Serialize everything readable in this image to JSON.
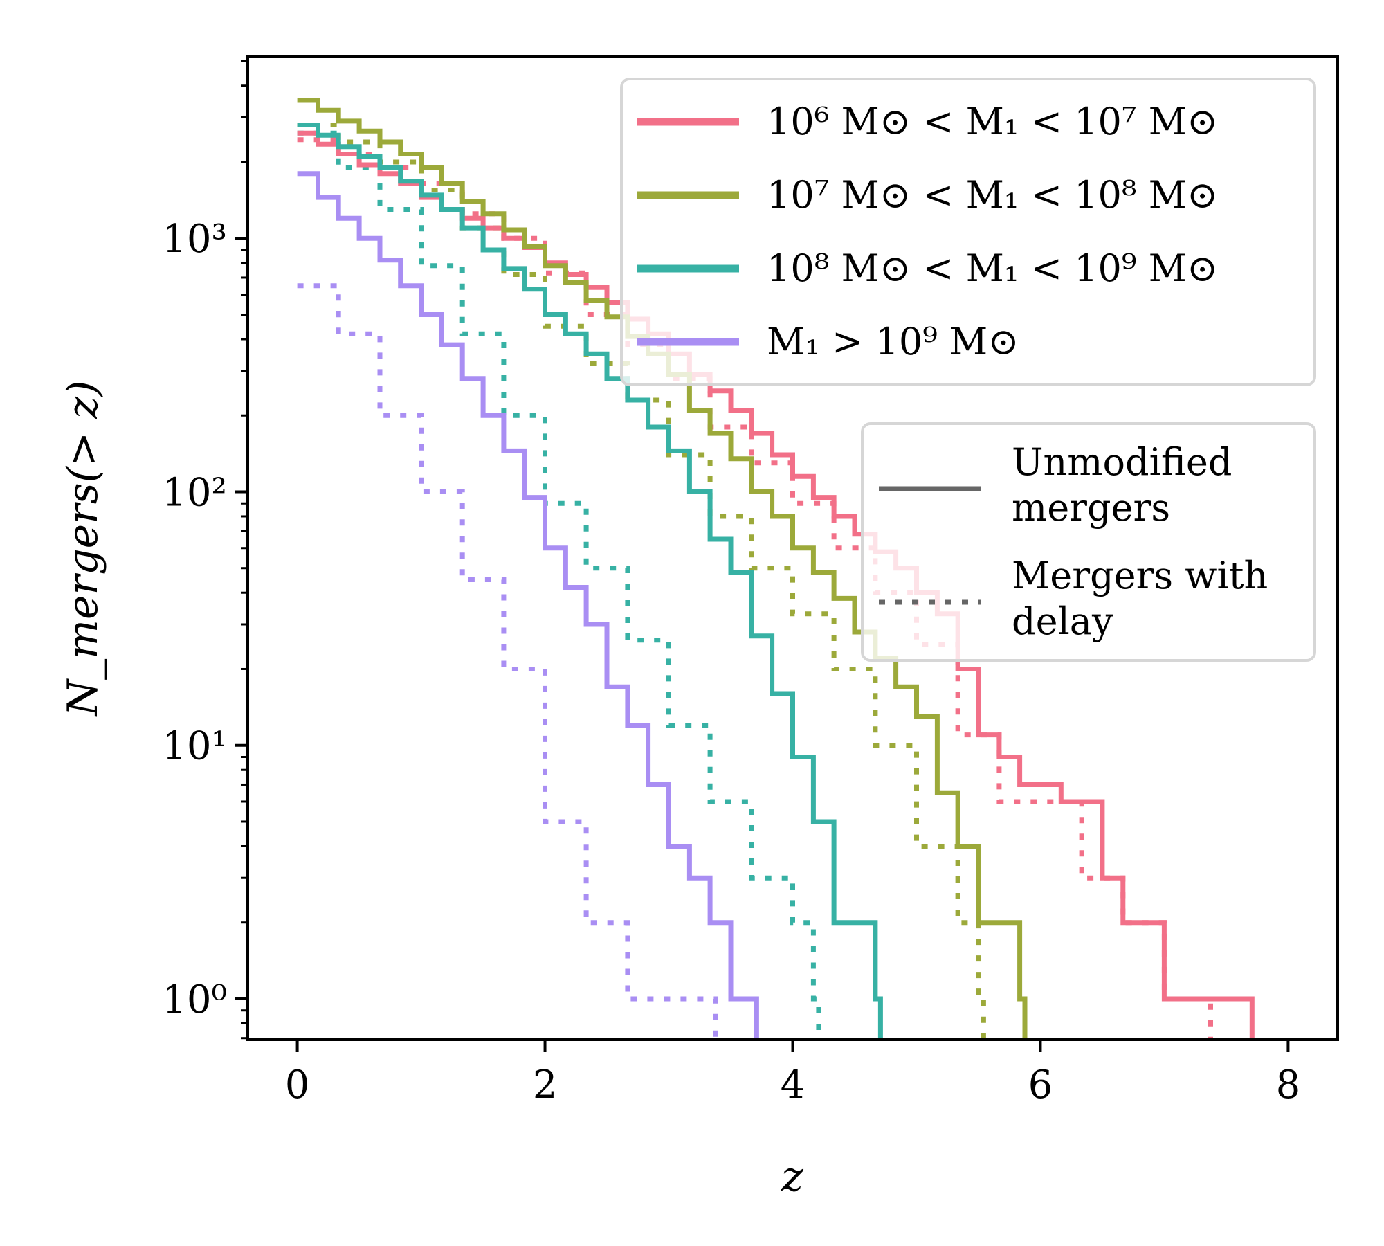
{
  "chart_data": {
    "type": "line",
    "step": true,
    "xlabel": "z",
    "ylabel": "N_mergers(> z)",
    "xlim": [
      -0.4,
      8.4
    ],
    "ylim": [
      0.69,
      5200
    ],
    "yscale": "log",
    "grid": false,
    "xticks": [
      0,
      2,
      4,
      6,
      8
    ],
    "xtick_labels": [
      "0",
      "2",
      "4",
      "6",
      "8"
    ],
    "yticks": [
      1,
      10,
      100,
      1000
    ],
    "ytick_labels": [
      "10⁰",
      "10¹",
      "10²",
      "10³"
    ],
    "bin_width": 0.167,
    "legend_mass": {
      "placement": "top-right",
      "entries": [
        {
          "label": "10⁶ M⊙ < M₁ < 10⁷ M⊙",
          "color": "#f27088"
        },
        {
          "label": "10⁷ M⊙ < M₁ < 10⁸ M⊙",
          "color": "#9ca93a"
        },
        {
          "label": "10⁸ M⊙ < M₁ < 10⁹ M⊙",
          "color": "#37b1a4"
        },
        {
          "label": "M₁ > 10⁹ M⊙",
          "color": "#a98ef3"
        }
      ]
    },
    "legend_style": {
      "placement": "center-right",
      "entries": [
        {
          "label_lines": [
            "Unmodified",
            "mergers"
          ],
          "style": "solid",
          "color": "#666666"
        },
        {
          "label_lines": [
            "Mergers with",
            "delay"
          ],
          "style": "dotted",
          "color": "#666666"
        }
      ]
    },
    "series": [
      {
        "group": "10⁶ M⊙ < M₁ < 10⁷ M⊙",
        "kind": "Unmodified mergers",
        "color": "#f27088",
        "style": "solid",
        "x": [
          0,
          0.167,
          0.333,
          0.5,
          0.667,
          0.833,
          1.0,
          1.167,
          1.333,
          1.5,
          1.667,
          1.833,
          2.0,
          2.167,
          2.333,
          2.5,
          2.667,
          2.833,
          3.0,
          3.167,
          3.333,
          3.5,
          3.667,
          3.833,
          4.0,
          4.167,
          4.333,
          4.5,
          4.667,
          4.833,
          5.0,
          5.167,
          5.333,
          5.5,
          5.667,
          5.833,
          6.167,
          6.5,
          6.667,
          7.0,
          7.667
        ],
        "y": [
          2600,
          2350,
          2150,
          1950,
          1800,
          1650,
          1450,
          1300,
          1200,
          1100,
          1000,
          920,
          800,
          720,
          640,
          560,
          480,
          420,
          350,
          290,
          250,
          210,
          170,
          140,
          115,
          95,
          80,
          68,
          58,
          50,
          40,
          33,
          20,
          11,
          9,
          7,
          6,
          3,
          2,
          1,
          1
        ]
      },
      {
        "group": "10⁷ M⊙ < M₁ < 10⁸ M⊙",
        "kind": "Unmodified mergers",
        "color": "#9ca93a",
        "style": "solid",
        "x": [
          0,
          0.167,
          0.333,
          0.5,
          0.667,
          0.833,
          1.0,
          1.167,
          1.333,
          1.5,
          1.667,
          1.833,
          2.0,
          2.167,
          2.333,
          2.5,
          2.667,
          2.833,
          3.0,
          3.167,
          3.333,
          3.5,
          3.667,
          3.833,
          4.0,
          4.167,
          4.333,
          4.5,
          4.667,
          4.833,
          5.0,
          5.167,
          5.333,
          5.5,
          5.833
        ],
        "y": [
          3500,
          3200,
          2900,
          2650,
          2400,
          2150,
          1900,
          1650,
          1400,
          1250,
          1080,
          930,
          780,
          670,
          570,
          490,
          410,
          350,
          290,
          210,
          170,
          135,
          100,
          80,
          60,
          48,
          38,
          28,
          22,
          17,
          13,
          6.5,
          4,
          2,
          1
        ]
      },
      {
        "group": "10⁸ M⊙ < M₁ < 10⁹ M⊙",
        "kind": "Unmodified mergers",
        "color": "#37b1a4",
        "style": "solid",
        "x": [
          0,
          0.167,
          0.333,
          0.5,
          0.667,
          0.833,
          1.0,
          1.167,
          1.333,
          1.5,
          1.667,
          1.833,
          2.0,
          2.167,
          2.333,
          2.5,
          2.667,
          2.833,
          3.0,
          3.167,
          3.333,
          3.5,
          3.667,
          3.833,
          4.0,
          4.167,
          4.333,
          4.667
        ],
        "y": [
          2800,
          2550,
          2300,
          2100,
          1900,
          1680,
          1480,
          1300,
          1100,
          900,
          760,
          630,
          500,
          420,
          350,
          280,
          230,
          180,
          145,
          100,
          65,
          48,
          27,
          16,
          9,
          5,
          2,
          1
        ]
      },
      {
        "group": "M₁ > 10⁹ M⊙",
        "kind": "Unmodified mergers",
        "color": "#a98ef3",
        "style": "solid",
        "x": [
          0,
          0.167,
          0.333,
          0.5,
          0.667,
          0.833,
          1.0,
          1.167,
          1.333,
          1.5,
          1.667,
          1.833,
          2.0,
          2.167,
          2.333,
          2.5,
          2.667,
          2.833,
          3.0,
          3.167,
          3.333,
          3.5,
          3.667
        ],
        "y": [
          1800,
          1450,
          1200,
          1000,
          820,
          650,
          500,
          380,
          280,
          200,
          145,
          95,
          60,
          42,
          30,
          17,
          12,
          7,
          4,
          3,
          2,
          1,
          1
        ]
      },
      {
        "group": "10⁶ M⊙ < M₁ < 10⁷ M⊙",
        "kind": "Mergers with delay",
        "color": "#f27088",
        "style": "dotted",
        "x": [
          0,
          0.333,
          0.667,
          1.0,
          1.333,
          1.667,
          2.0,
          2.333,
          2.667,
          3.0,
          3.333,
          3.667,
          4.0,
          4.333,
          4.667,
          5.0,
          5.333,
          5.667,
          6.0,
          6.333,
          6.667,
          7.0,
          7.333
        ],
        "y": [
          2450,
          2150,
          1900,
          1650,
          1250,
          1000,
          730,
          500,
          380,
          280,
          180,
          130,
          90,
          60,
          40,
          25,
          11,
          6,
          6,
          3,
          2,
          1,
          1
        ]
      },
      {
        "group": "10⁷ M⊙ < M₁ < 10⁸ M⊙",
        "kind": "Mergers with delay",
        "color": "#9ca93a",
        "style": "dotted",
        "x": [
          0,
          0.333,
          0.667,
          1.0,
          1.333,
          1.667,
          2.0,
          2.333,
          2.667,
          3.0,
          3.333,
          3.667,
          4.0,
          4.333,
          4.667,
          5.0,
          5.333,
          5.5
        ],
        "y": [
          2800,
          2400,
          2000,
          1550,
          1100,
          720,
          450,
          320,
          230,
          140,
          80,
          50,
          33,
          20,
          10,
          4,
          2,
          1
        ]
      },
      {
        "group": "10⁸ M⊙ < M₁ < 10⁹ M⊙",
        "kind": "Mergers with delay",
        "color": "#37b1a4",
        "style": "dotted",
        "x": [
          0,
          0.333,
          0.667,
          1.0,
          1.333,
          1.667,
          2.0,
          2.333,
          2.667,
          3.0,
          3.333,
          3.667,
          4.0,
          4.167
        ],
        "y": [
          2600,
          1900,
          1300,
          780,
          420,
          200,
          90,
          50,
          26,
          12,
          6,
          3,
          2,
          1
        ]
      },
      {
        "group": "M₁ > 10⁹ M⊙",
        "kind": "Mergers with delay",
        "color": "#a98ef3",
        "style": "dotted",
        "x": [
          0,
          0.333,
          0.667,
          1.0,
          1.333,
          1.667,
          2.0,
          2.333,
          2.667,
          3.0,
          3.333
        ],
        "y": [
          650,
          420,
          200,
          100,
          45,
          20,
          5,
          2,
          1,
          1,
          1
        ]
      }
    ]
  }
}
